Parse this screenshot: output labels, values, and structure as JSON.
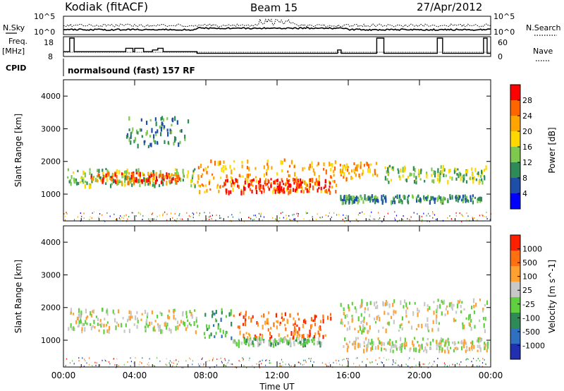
{
  "header": {
    "title": "Kodiak (fitACF)",
    "beam": "Beam 15",
    "date": "27/Apr/2012"
  },
  "noise_panel": {
    "left_label": "N.Sky",
    "right_label": "N.Search",
    "ticks_left": [
      "10^5",
      "10^0"
    ],
    "ticks_right": [
      "10^5",
      "10^0"
    ]
  },
  "freq_panel": {
    "left_label_1": "Freq.",
    "left_label_2": "[MHz]",
    "cpid_label": "CPID",
    "right_label": "Nave",
    "ticks_left": [
      "18",
      "8"
    ],
    "ticks_right": [
      "60",
      "0"
    ]
  },
  "mode_text": "normalsound (fast) 157 RF",
  "power_panel": {
    "ylabel": "Slant Range [km]",
    "yticks": [
      "4000",
      "3000",
      "2000",
      "1000"
    ],
    "colorbar_label": "Power [dB]",
    "colorbar_ticks": [
      "28",
      "24",
      "20",
      "16",
      "12",
      "8",
      "4"
    ],
    "colors": [
      "#0000ff",
      "#1e4fa8",
      "#2e8b57",
      "#7ec850",
      "#ffd800",
      "#ffa500",
      "#ff6600",
      "#ff0000"
    ]
  },
  "velocity_panel": {
    "ylabel": "Slant Range [km]",
    "yticks": [
      "4000",
      "3000",
      "2000",
      "1000"
    ],
    "colorbar_label": "Velocity [m s^-1]",
    "colorbar_ticks": [
      "1000",
      "500",
      "100",
      "25",
      "-25",
      "-100",
      "-500",
      "-1000"
    ],
    "colors": [
      "#2030b0",
      "#3070c0",
      "#2e8b57",
      "#60d040",
      "#c8c8c8",
      "#ffa030",
      "#ff7010",
      "#ff2000"
    ]
  },
  "xaxis": {
    "label": "Time UT",
    "ticks": [
      "00:00",
      "04:00",
      "08:00",
      "12:00",
      "16:00",
      "20:00",
      "00:00"
    ]
  },
  "chart_data": {
    "type": "heatmap",
    "x_range_hours": [
      0,
      24
    ],
    "y_range_km": [
      180,
      4500
    ],
    "power_bands": [
      {
        "t0": 0.2,
        "t1": 7.5,
        "r0": 1300,
        "r1": 1800,
        "level": 3
      },
      {
        "t0": 1.5,
        "t1": 6.5,
        "r0": 1400,
        "r1": 1700,
        "level": 6
      },
      {
        "t0": 7.5,
        "t1": 15.3,
        "r0": 1100,
        "r1": 2100,
        "level": 5
      },
      {
        "t0": 9.0,
        "t1": 15.0,
        "r0": 1100,
        "r1": 1500,
        "level": 7
      },
      {
        "t0": 15.5,
        "t1": 17.7,
        "r0": 1500,
        "r1": 2000,
        "level": 5
      },
      {
        "t0": 18.0,
        "t1": 23.8,
        "r0": 1400,
        "r1": 1900,
        "level": 3
      },
      {
        "t0": 15.5,
        "t1": 23.5,
        "r0": 800,
        "r1": 1000,
        "level": 2
      },
      {
        "t0": 3.5,
        "t1": 7.0,
        "r0": 2500,
        "r1": 3400,
        "level": 2
      }
    ],
    "velocity_bands": [
      {
        "t0": 0.2,
        "t1": 7.5,
        "r0": 1300,
        "r1": 2000,
        "class": 4
      },
      {
        "t0": 7.8,
        "t1": 9.5,
        "r0": 1100,
        "r1": 2000,
        "class": 2
      },
      {
        "t0": 9.5,
        "t1": 15.0,
        "r0": 1100,
        "r1": 1900,
        "class": 6
      },
      {
        "t0": 9.5,
        "t1": 14.5,
        "r0": 900,
        "r1": 1100,
        "class": 3
      },
      {
        "t0": 15.5,
        "t1": 23.8,
        "r0": 1300,
        "r1": 2300,
        "class": 4
      },
      {
        "t0": 15.5,
        "t1": 23.8,
        "r0": 700,
        "r1": 1100,
        "class": 4
      }
    ]
  }
}
